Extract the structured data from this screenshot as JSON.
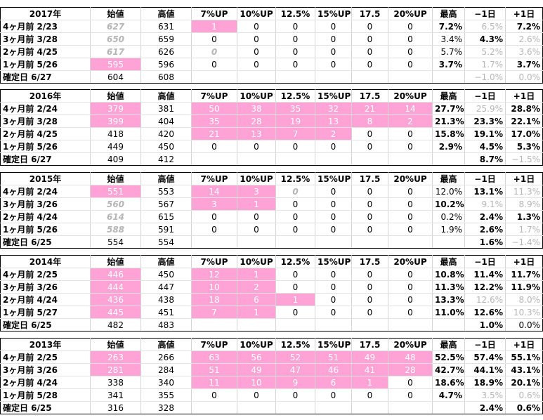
{
  "headers": [
    "始値",
    "高値",
    "7%UP",
    "10%UP",
    "12.5%",
    "15%UP",
    "17.5",
    "20%UP",
    "最高",
    "−1日",
    "+1日"
  ],
  "blocks": [
    {
      "year": "2017年",
      "rows": [
        {
          "label": "4ヶ月前 2/23",
          "v": [
            "627",
            "631",
            "1",
            "0",
            "0",
            "0",
            "0",
            "0",
            "7.2%",
            "6.5%",
            "7.2%"
          ],
          "s": [
            "gi",
            "",
            "pk",
            "",
            "",
            "",
            "",
            "",
            "b",
            "gr",
            "b"
          ]
        },
        {
          "label": "3ヶ月前 3/28",
          "v": [
            "650",
            "659",
            "0",
            "0",
            "0",
            "0",
            "0",
            "0",
            "3.4%",
            "4.3%",
            "2.6%"
          ],
          "s": [
            "gi",
            "",
            "",
            "",
            "",
            "",
            "",
            "",
            "",
            "b",
            "gr"
          ]
        },
        {
          "label": "2ヶ月前 4/25",
          "v": [
            "617",
            "626",
            "0",
            "0",
            "0",
            "0",
            "0",
            "0",
            "5.7%",
            "5.2%",
            "3.6%"
          ],
          "s": [
            "gi",
            "",
            "gi",
            "",
            "",
            "",
            "",
            "",
            "",
            "gr",
            "gr"
          ]
        },
        {
          "label": "1ヶ月前 5/26",
          "v": [
            "595",
            "596",
            "0",
            "0",
            "0",
            "0",
            "0",
            "0",
            "3.7%",
            "1.7%",
            "3.7%"
          ],
          "s": [
            "pk",
            "",
            "",
            "",
            "",
            "",
            "",
            "",
            "b",
            "gr",
            "b"
          ]
        },
        {
          "label": "確定日 6/27",
          "v": [
            "604",
            "608",
            "",
            "",
            "",
            "",
            "",
            "",
            "",
            "−1.0%",
            "0.0%"
          ],
          "s": [
            "",
            "",
            "",
            "",
            "",
            "",
            "",
            "",
            "",
            "gr",
            "gr"
          ]
        }
      ]
    },
    {
      "year": "2016年",
      "rows": [
        {
          "label": "4ヶ月前 2/24",
          "v": [
            "379",
            "381",
            "50",
            "38",
            "35",
            "32",
            "21",
            "14",
            "27.7%",
            "25.9%",
            "28.8%"
          ],
          "s": [
            "pk",
            "",
            "pk",
            "pk",
            "pk",
            "pk",
            "pk",
            "pk",
            "b",
            "gr",
            "b"
          ]
        },
        {
          "label": "3ヶ月前 3/28",
          "v": [
            "399",
            "404",
            "35",
            "28",
            "19",
            "13",
            "8",
            "2",
            "21.3%",
            "23.3%",
            "22.1%"
          ],
          "s": [
            "pk",
            "",
            "pk",
            "pk",
            "pk",
            "pk",
            "pk",
            "pk",
            "b",
            "b",
            "b"
          ]
        },
        {
          "label": "2ヶ月前 4/25",
          "v": [
            "418",
            "420",
            "21",
            "13",
            "7",
            "2",
            "0",
            "0",
            "15.8%",
            "19.1%",
            "17.0%"
          ],
          "s": [
            "",
            "",
            "pk",
            "pk",
            "pk",
            "pk",
            "",
            "",
            "b",
            "b",
            "b"
          ]
        },
        {
          "label": "1ヶ月前 5/26",
          "v": [
            "449",
            "450",
            "0",
            "0",
            "0",
            "0",
            "0",
            "0",
            "2.9%",
            "4.5%",
            "5.3%"
          ],
          "s": [
            "",
            "",
            "",
            "",
            "",
            "",
            "",
            "",
            "b",
            "b",
            "b"
          ]
        },
        {
          "label": "確定日 6/27",
          "v": [
            "409",
            "412",
            "",
            "",
            "",
            "",
            "",
            "",
            "",
            "8.7%",
            "−1.5%"
          ],
          "s": [
            "",
            "",
            "",
            "",
            "",
            "",
            "",
            "",
            "",
            "b",
            "gr"
          ]
        }
      ]
    },
    {
      "year": "2015年",
      "rows": [
        {
          "label": "4ヶ月前 2/24",
          "v": [
            "551",
            "553",
            "14",
            "3",
            "0",
            "0",
            "0",
            "0",
            "12.0%",
            "13.1%",
            "11.3%"
          ],
          "s": [
            "pk",
            "",
            "pk",
            "pk",
            "gi",
            "",
            "",
            "",
            "",
            "b",
            "gr"
          ]
        },
        {
          "label": "3ヶ月前 3/26",
          "v": [
            "560",
            "567",
            "3",
            "1",
            "0",
            "0",
            "0",
            "0",
            "10.2%",
            "9.1%",
            "8.9%"
          ],
          "s": [
            "gi",
            "",
            "pk",
            "pk",
            "",
            "",
            "",
            "",
            "b",
            "gr",
            "gr"
          ]
        },
        {
          "label": "2ヶ月前 4/24",
          "v": [
            "614",
            "615",
            "0",
            "0",
            "0",
            "0",
            "0",
            "0",
            "0.2%",
            "2.4%",
            "1.3%"
          ],
          "s": [
            "gi",
            "",
            "",
            "",
            "",
            "",
            "",
            "",
            "",
            "b",
            "b"
          ]
        },
        {
          "label": "1ヶ月前 5/26",
          "v": [
            "588",
            "591",
            "0",
            "0",
            "0",
            "0",
            "0",
            "0",
            "1.9%",
            "2.6%",
            "1.7%"
          ],
          "s": [
            "gi",
            "",
            "",
            "",
            "",
            "",
            "",
            "",
            "",
            "b",
            "gr"
          ]
        },
        {
          "label": "確定日 6/25",
          "v": [
            "554",
            "554",
            "",
            "",
            "",
            "",
            "",
            "",
            "",
            "1.6%",
            "−1.4%"
          ],
          "s": [
            "",
            "",
            "",
            "",
            "",
            "",
            "",
            "",
            "",
            "b",
            "gr"
          ]
        }
      ]
    },
    {
      "year": "2014年",
      "rows": [
        {
          "label": "4ヶ月前 2/25",
          "v": [
            "446",
            "450",
            "12",
            "1",
            "0",
            "0",
            "0",
            "0",
            "10.8%",
            "11.4%",
            "11.7%"
          ],
          "s": [
            "pk",
            "",
            "pk",
            "pk",
            "",
            "",
            "",
            "",
            "b",
            "b",
            "b"
          ]
        },
        {
          "label": "3ヶ月前 3/26",
          "v": [
            "444",
            "447",
            "10",
            "2",
            "0",
            "0",
            "0",
            "0",
            "11.3%",
            "12.2%",
            "11.9%"
          ],
          "s": [
            "pk",
            "",
            "pk",
            "pk",
            "",
            "",
            "",
            "",
            "b",
            "b",
            "b"
          ]
        },
        {
          "label": "2ヶ月前 4/24",
          "v": [
            "436",
            "438",
            "18",
            "6",
            "1",
            "0",
            "0",
            "0",
            "13.3%",
            "12.6%",
            "8.0%"
          ],
          "s": [
            "pk",
            "",
            "pk",
            "pk",
            "pk",
            "",
            "",
            "",
            "b",
            "gr",
            "gr"
          ]
        },
        {
          "label": "1ヶ月前 5/27",
          "v": [
            "445",
            "451",
            "7",
            "1",
            "0",
            "0",
            "0",
            "0",
            "11.0%",
            "12.6%",
            "10.3%"
          ],
          "s": [
            "pk",
            "",
            "pk",
            "pk",
            "",
            "",
            "",
            "",
            "b",
            "b",
            "gr"
          ]
        },
        {
          "label": "確定日 6/25",
          "v": [
            "482",
            "483",
            "",
            "",
            "",
            "",
            "",
            "",
            "",
            "1.0%",
            "0.0%"
          ],
          "s": [
            "",
            "",
            "",
            "",
            "",
            "",
            "",
            "",
            "",
            "b",
            ""
          ]
        }
      ]
    },
    {
      "year": "2013年",
      "rows": [
        {
          "label": "4ヶ月前 2/25",
          "v": [
            "263",
            "266",
            "63",
            "56",
            "52",
            "51",
            "49",
            "48",
            "52.5%",
            "57.4%",
            "55.1%"
          ],
          "s": [
            "pk",
            "",
            "pk",
            "pk",
            "pk",
            "pk",
            "pk",
            "pk",
            "b",
            "b",
            "b"
          ]
        },
        {
          "label": "3ヶ月前 3/26",
          "v": [
            "281",
            "284",
            "51",
            "49",
            "47",
            "46",
            "41",
            "28",
            "42.7%",
            "44.1%",
            "43.1%"
          ],
          "s": [
            "pk",
            "",
            "pk",
            "pk",
            "pk",
            "pk",
            "pk",
            "pk",
            "b",
            "b",
            "b"
          ]
        },
        {
          "label": "2ヶ月前 4/24",
          "v": [
            "338",
            "340",
            "11",
            "10",
            "9",
            "6",
            "1",
            "0",
            "18.6%",
            "18.9%",
            "20.1%"
          ],
          "s": [
            "",
            "",
            "pk",
            "pk",
            "pk",
            "pk",
            "pk",
            "",
            "b",
            "b",
            "b"
          ]
        },
        {
          "label": "1ヶ月前 5/28",
          "v": [
            "341",
            "355",
            "0",
            "0",
            "0",
            "0",
            "0",
            "0",
            "4.7%",
            "3.5%",
            "0.6%"
          ],
          "s": [
            "",
            "",
            "",
            "",
            "",
            "",
            "",
            "",
            "b",
            "gr",
            "gr"
          ]
        },
        {
          "label": "確定日 6/25",
          "v": [
            "316",
            "328",
            "",
            "",
            "",
            "",
            "",
            "",
            "",
            "2.4%",
            "0.6%"
          ],
          "s": [
            "",
            "",
            "",
            "",
            "",
            "",
            "",
            "",
            "",
            "b",
            "b"
          ]
        }
      ]
    }
  ]
}
